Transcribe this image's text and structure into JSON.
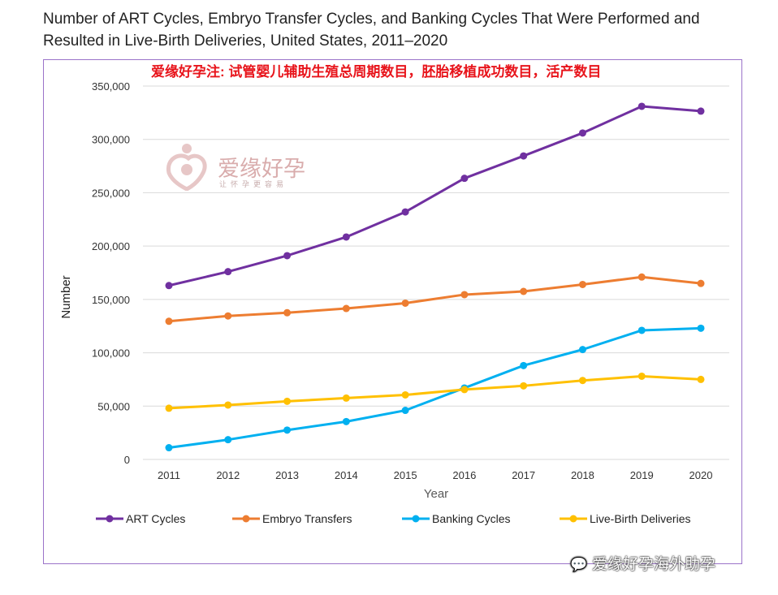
{
  "title": "Number of ART Cycles, Embryo Transfer Cycles, and Banking Cycles That Were Performed and Resulted in Live-Birth Deliveries, United States, 2011–2020",
  "annotation": "爱缘好孕注: 试管婴儿辅助生殖总周期数目，胚胎移植成功数目，活产数目",
  "watermark": {
    "brand": "爱缘好孕",
    "tagline": "让怀孕更容易",
    "footer": "爱缘好孕海外助孕",
    "footer_icon": "wechat-icon"
  },
  "chart_data": {
    "type": "line",
    "xlabel": "Year",
    "ylabel": "Number",
    "categories": [
      "2011",
      "2012",
      "2013",
      "2014",
      "2015",
      "2016",
      "2017",
      "2018",
      "2019",
      "2020"
    ],
    "ylim": [
      0,
      350000
    ],
    "yticks": [
      0,
      50000,
      100000,
      150000,
      200000,
      250000,
      300000,
      350000
    ],
    "ytick_labels": [
      "0",
      "50,000",
      "100,000",
      "150,000",
      "200,000",
      "250,000",
      "300,000",
      "350,000"
    ],
    "grid": true,
    "legend_position": "bottom",
    "series": [
      {
        "name": "ART Cycles",
        "color": "#7030a0",
        "values": [
          163000,
          176000,
          191000,
          208500,
          232000,
          263500,
          284500,
          306000,
          331000,
          326500
        ]
      },
      {
        "name": "Embryo Transfers",
        "color": "#ed7d31",
        "values": [
          129500,
          134500,
          137500,
          141500,
          146500,
          154500,
          157500,
          164000,
          171000,
          165000
        ]
      },
      {
        "name": "Banking Cycles",
        "color": "#00b0f0",
        "values": [
          11000,
          18500,
          27500,
          35500,
          46000,
          67000,
          88000,
          103000,
          121000,
          123000
        ]
      },
      {
        "name": "Live-Birth Deliveries",
        "color": "#ffc000",
        "values": [
          48000,
          51000,
          54500,
          57500,
          60500,
          65500,
          69000,
          74000,
          78000,
          75000
        ]
      }
    ]
  }
}
